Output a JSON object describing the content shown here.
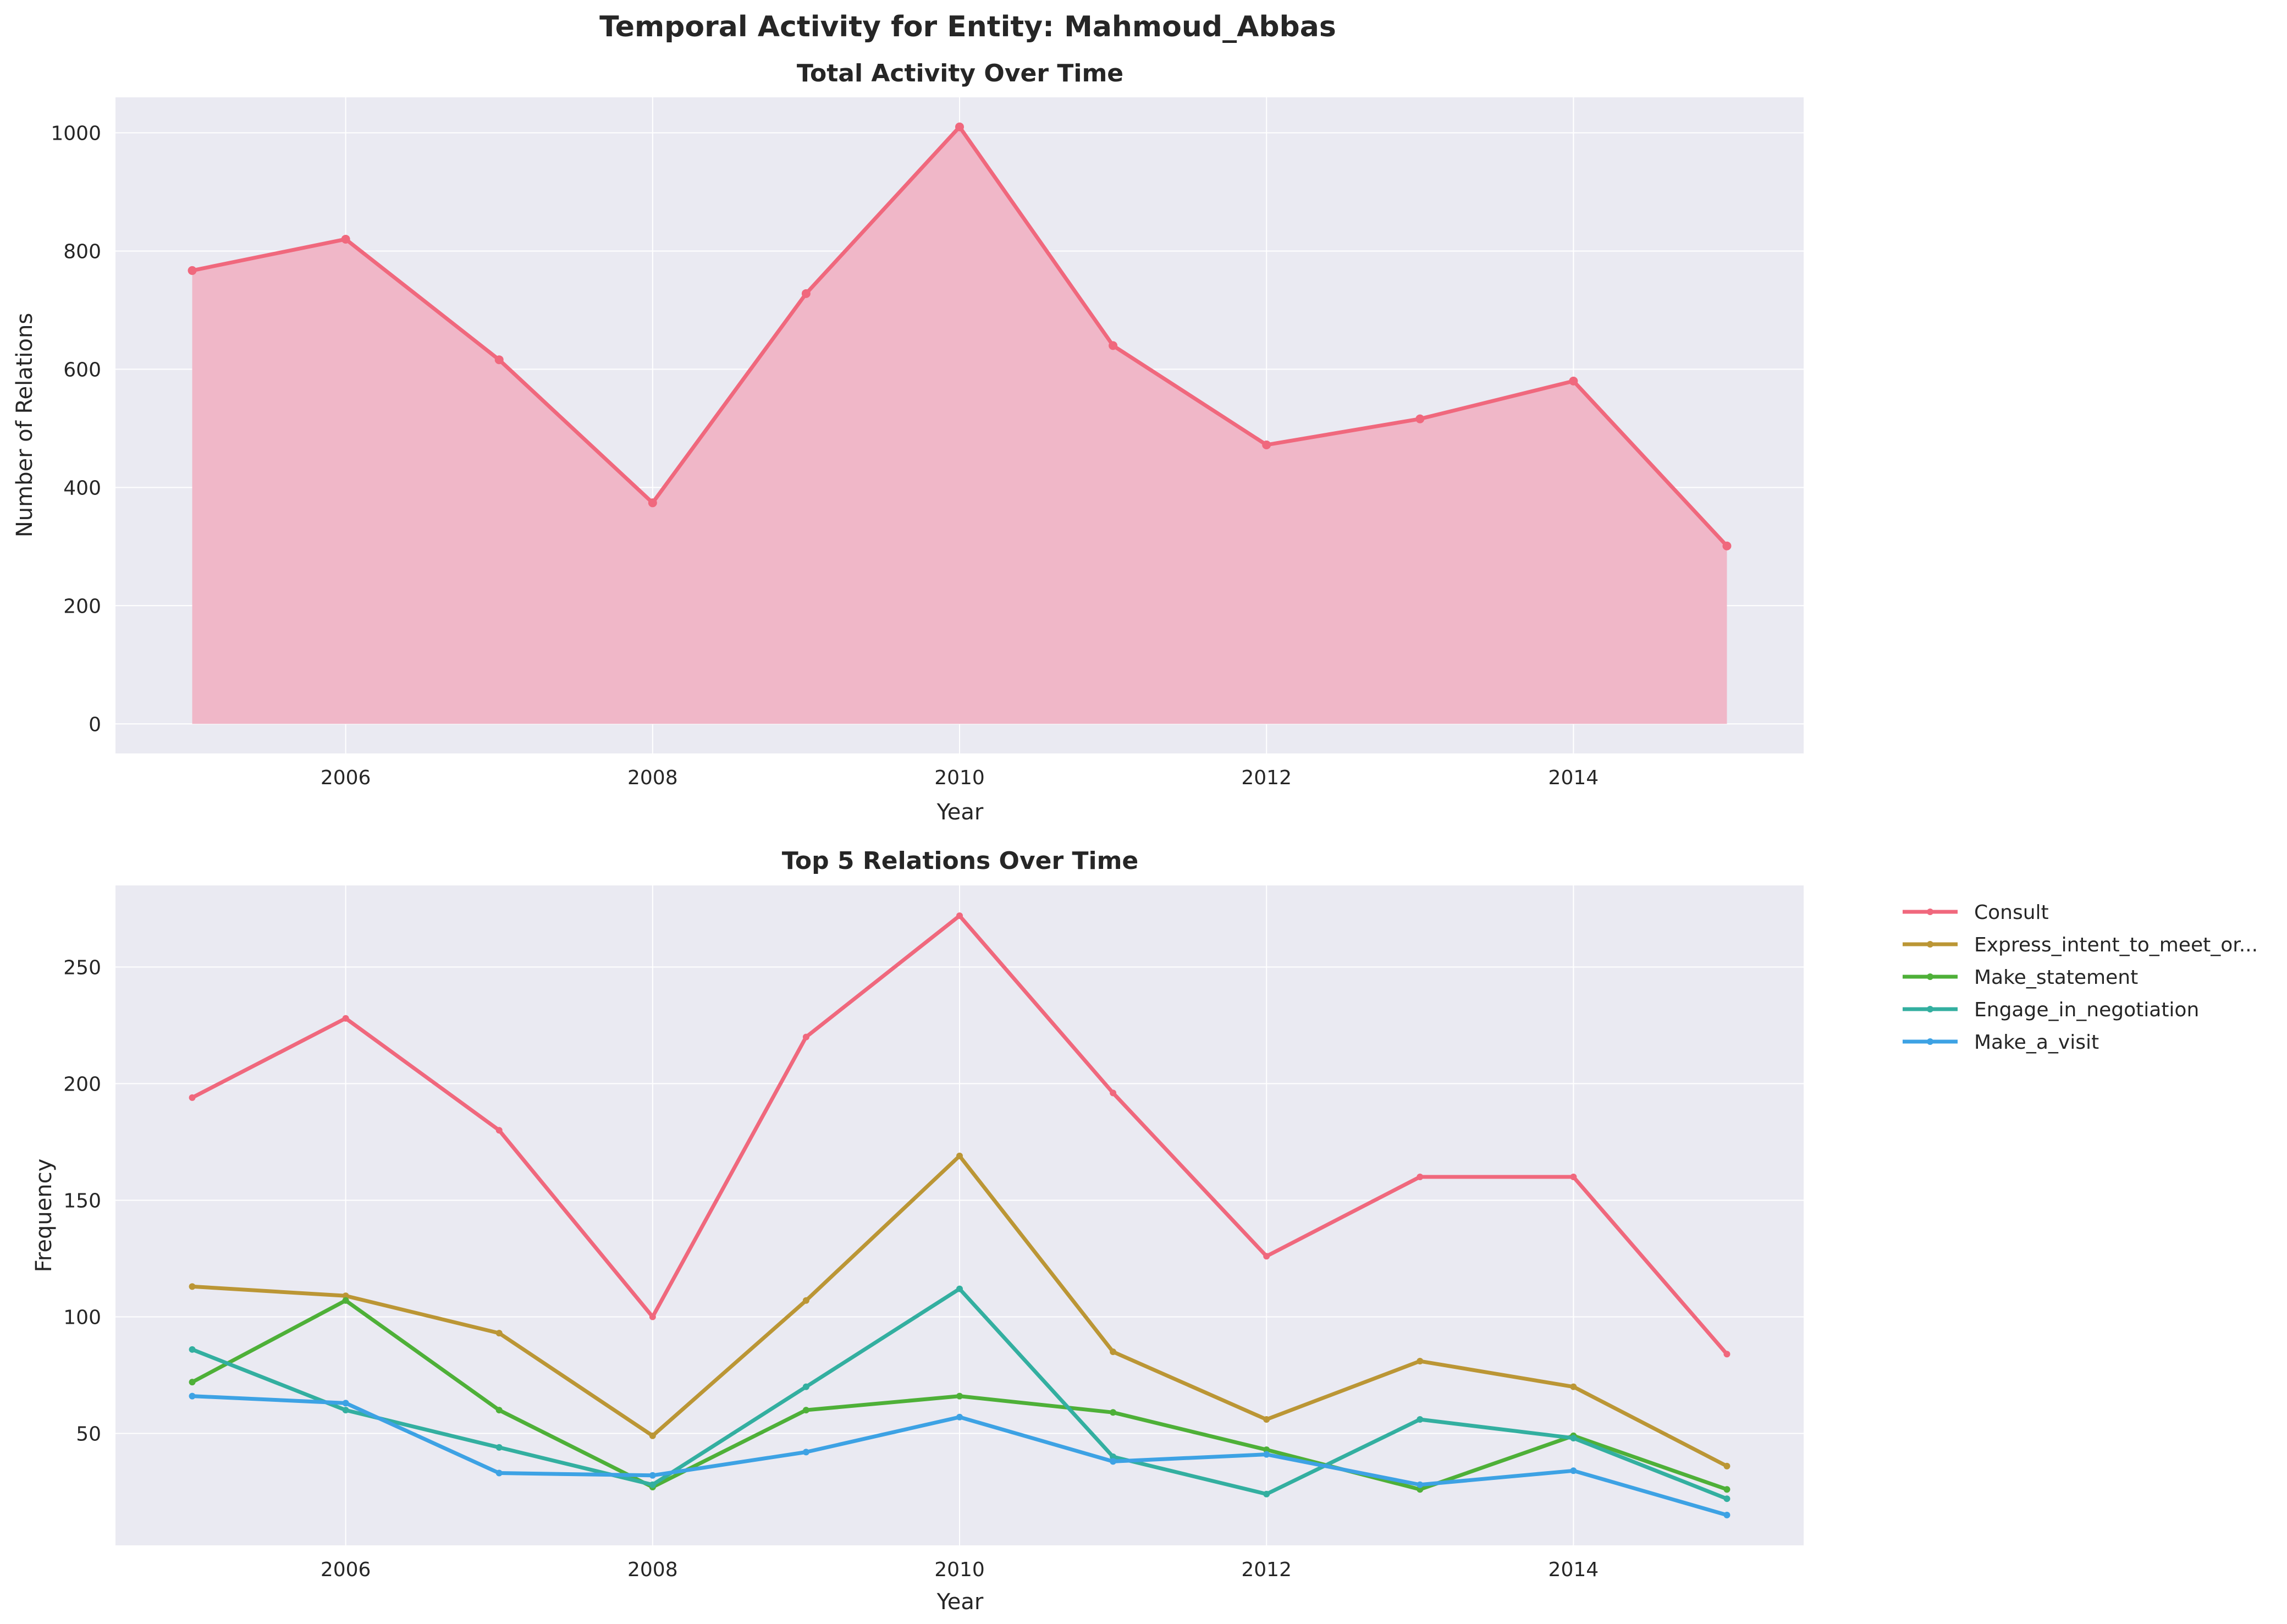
{
  "figure": {
    "suptitle": "Temporal Activity for Entity: Mahmoud_Abbas"
  },
  "colors": {
    "panel_bg": "#EAEAF2",
    "grid": "#FFFFFF",
    "text": "#262626",
    "total_line": "#F0687D",
    "total_fill": "#F0B7C8"
  },
  "chart_data": [
    {
      "type": "area",
      "title": "Total Activity Over Time",
      "xlabel": "Year",
      "ylabel": "Number of Relations",
      "x": [
        2005,
        2006,
        2007,
        2008,
        2009,
        2010,
        2011,
        2012,
        2013,
        2014,
        2015
      ],
      "values": [
        767,
        820,
        616,
        374,
        728,
        1010,
        640,
        472,
        516,
        580,
        301
      ],
      "xlim": [
        2004.5,
        2015.5
      ],
      "ylim": [
        -50,
        1060
      ],
      "xticks": [
        2006,
        2008,
        2010,
        2012,
        2014
      ],
      "yticks": [
        0,
        200,
        400,
        600,
        800,
        1000
      ],
      "grid": true,
      "color": "#F0687D"
    },
    {
      "type": "line",
      "title": "Top 5 Relations Over Time",
      "xlabel": "Year",
      "ylabel": "Frequency",
      "x": [
        2005,
        2006,
        2007,
        2008,
        2009,
        2010,
        2011,
        2012,
        2013,
        2014,
        2015
      ],
      "xlim": [
        2004.5,
        2015.5
      ],
      "ylim": [
        2,
        285
      ],
      "xticks": [
        2006,
        2008,
        2010,
        2012,
        2014
      ],
      "yticks": [
        50,
        100,
        150,
        200,
        250
      ],
      "grid": true,
      "legend_position": "outside-right-top",
      "series": [
        {
          "name": "Consult",
          "color": "#F0687D",
          "values": [
            194,
            228,
            180,
            100,
            220,
            272,
            196,
            126,
            160,
            160,
            84
          ]
        },
        {
          "name": "Express_intent_to_meet_or...",
          "color": "#BB9635",
          "values": [
            113,
            109,
            93,
            49,
            107,
            169,
            85,
            56,
            81,
            70,
            36
          ]
        },
        {
          "name": "Make_statement",
          "color": "#4EB038",
          "values": [
            72,
            107,
            60,
            27,
            60,
            66,
            59,
            43,
            26,
            49,
            26
          ]
        },
        {
          "name": "Engage_in_negotiation",
          "color": "#33AFA0",
          "values": [
            86,
            60,
            44,
            28,
            70,
            112,
            40,
            24,
            56,
            48,
            22
          ]
        },
        {
          "name": "Make_a_visit",
          "color": "#3DA2E4",
          "values": [
            66,
            63,
            33,
            32,
            42,
            57,
            38,
            41,
            28,
            34,
            15
          ]
        }
      ]
    }
  ]
}
